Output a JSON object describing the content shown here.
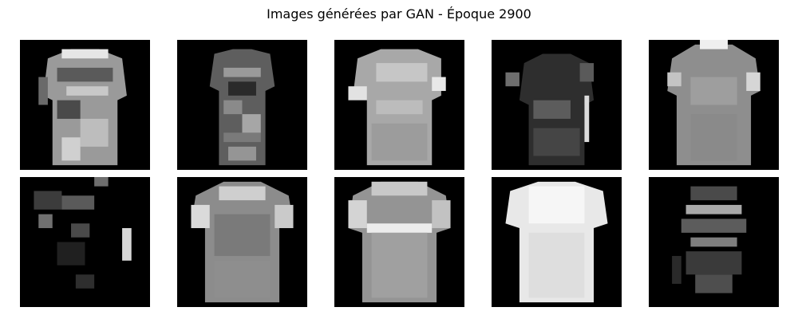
{
  "figure": {
    "title": "Images générées par GAN - Époque 2900"
  },
  "images": [
    {
      "row": 1,
      "col": 1,
      "depicts": "t-shirt"
    },
    {
      "row": 1,
      "col": 2,
      "depicts": "t-shirt"
    },
    {
      "row": 1,
      "col": 3,
      "depicts": "t-shirt"
    },
    {
      "row": 1,
      "col": 4,
      "depicts": "t-shirt"
    },
    {
      "row": 1,
      "col": 5,
      "depicts": "t-shirt"
    },
    {
      "row": 2,
      "col": 1,
      "depicts": "t-shirt"
    },
    {
      "row": 2,
      "col": 2,
      "depicts": "t-shirt"
    },
    {
      "row": 2,
      "col": 3,
      "depicts": "t-shirt"
    },
    {
      "row": 2,
      "col": 4,
      "depicts": "t-shirt"
    },
    {
      "row": 2,
      "col": 5,
      "depicts": "t-shirt"
    }
  ],
  "colors": {
    "background": "#ffffff",
    "tile_background": "#000000"
  }
}
